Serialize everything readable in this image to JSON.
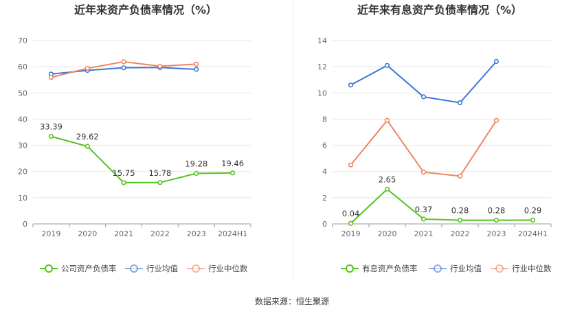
{
  "source_text": "数据来源：恒生聚源",
  "colors": {
    "company": "#52c41a",
    "industry_avg": "#3a76d8",
    "industry_median": "#f08560",
    "grid": "#e5e5e5",
    "axis": "#999999"
  },
  "chart_data": [
    {
      "type": "line",
      "title": "近年来资产负债率情况（%）",
      "categories": [
        "2019",
        "2020",
        "2021",
        "2022",
        "2023",
        "2024H1"
      ],
      "ylim": [
        0,
        70
      ],
      "yticks": [
        0,
        10,
        20,
        30,
        40,
        50,
        60,
        70
      ],
      "grid": true,
      "legend_position": "bottom",
      "series": [
        {
          "name": "公司资产负债率",
          "color_key": "company",
          "values": [
            33.39,
            29.62,
            15.75,
            15.78,
            19.28,
            19.46
          ],
          "labels": [
            "33.39",
            "29.62",
            "15.75",
            "15.78",
            "19.28",
            "19.46"
          ]
        },
        {
          "name": "行业均值",
          "color_key": "industry_avg",
          "values": [
            57.2,
            58.6,
            59.6,
            59.7,
            59.0,
            null
          ]
        },
        {
          "name": "行业中位数",
          "color_key": "industry_median",
          "values": [
            55.9,
            59.4,
            61.9,
            60.2,
            61.0,
            null
          ]
        }
      ]
    },
    {
      "type": "line",
      "title": "近年来有息资产负债率情况（%）",
      "categories": [
        "2019",
        "2020",
        "2021",
        "2022",
        "2023",
        "2024H1"
      ],
      "ylim": [
        0,
        14
      ],
      "yticks": [
        0,
        2,
        4,
        6,
        8,
        10,
        12,
        14
      ],
      "grid": true,
      "legend_position": "bottom",
      "series": [
        {
          "name": "有息资产负债率",
          "color_key": "company",
          "values": [
            0.04,
            2.65,
            0.37,
            0.28,
            0.28,
            0.29
          ],
          "labels": [
            "0.04",
            "2.65",
            "0.37",
            "0.28",
            "0.28",
            "0.29"
          ]
        },
        {
          "name": "行业均值",
          "color_key": "industry_avg",
          "values": [
            10.6,
            12.1,
            9.7,
            9.25,
            12.4,
            null
          ]
        },
        {
          "name": "行业中位数",
          "color_key": "industry_median",
          "values": [
            4.5,
            7.9,
            3.95,
            3.65,
            7.9,
            null
          ]
        }
      ]
    }
  ]
}
